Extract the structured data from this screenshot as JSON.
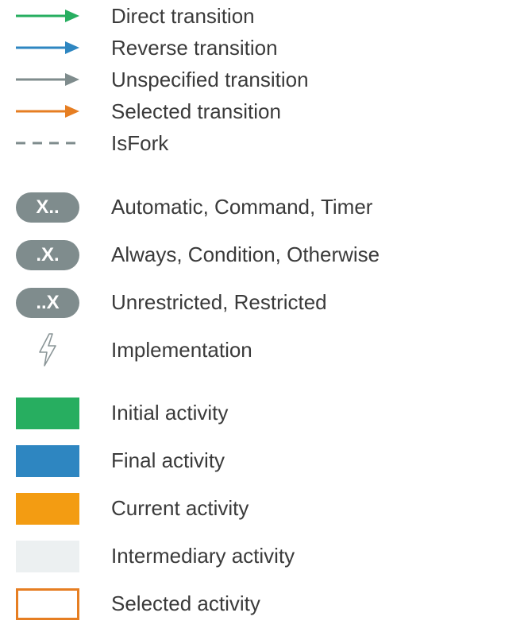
{
  "transitions": [
    {
      "label": "Direct transition",
      "color": "#27ae60",
      "style": "solid"
    },
    {
      "label": "Reverse transition",
      "color": "#2e86c1",
      "style": "solid"
    },
    {
      "label": "Unspecified transition",
      "color": "#7f8c8d",
      "style": "solid"
    },
    {
      "label": "Selected transition",
      "color": "#e67e22",
      "style": "solid"
    },
    {
      "label": "IsFork",
      "color": "#7f8c8d",
      "style": "dashed"
    }
  ],
  "badges": [
    {
      "symbol": "X..",
      "label": "Automatic, Command, Timer"
    },
    {
      "symbol": ".X.",
      "label": "Always, Condition, Otherwise"
    },
    {
      "symbol": "..X",
      "label": "Unrestricted, Restricted"
    }
  ],
  "implementation": {
    "label": "Implementation",
    "icon": "lightning-icon"
  },
  "activities": [
    {
      "label": "Initial activity",
      "fill": "#27ae60",
      "border": ""
    },
    {
      "label": "Final activity",
      "fill": "#2e86c1",
      "border": ""
    },
    {
      "label": "Current activity",
      "fill": "#f39c12",
      "border": ""
    },
    {
      "label": "Intermediary activity",
      "fill": "#ecf0f1",
      "border": ""
    },
    {
      "label": "Selected activity",
      "fill": "#ffffff",
      "border": "#e67e22"
    }
  ]
}
